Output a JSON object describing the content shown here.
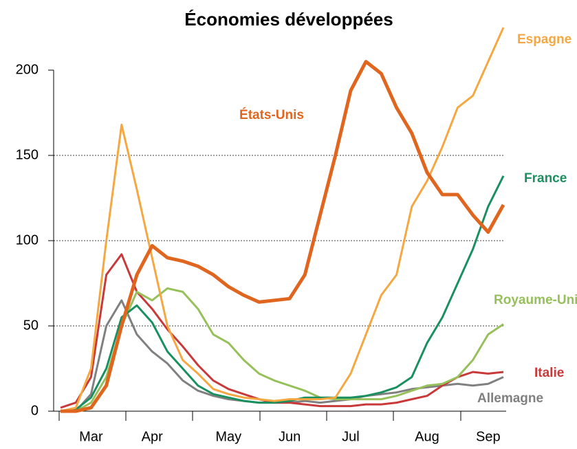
{
  "chart_data": {
    "type": "line",
    "title": "Économies développées",
    "categories": [
      null,
      null,
      "Mar",
      null,
      null,
      null,
      "Apr",
      null,
      null,
      null,
      null,
      "May",
      null,
      null,
      null,
      "Jun",
      null,
      null,
      null,
      "Jul",
      null,
      null,
      null,
      null,
      "Aug",
      null,
      null,
      null,
      "Sep",
      null
    ],
    "ylim": [
      0,
      200
    ],
    "yticks": [
      0,
      50,
      100,
      150,
      200
    ],
    "grid": true,
    "series": [
      {
        "name": "États-Unis",
        "color": "#e0661f",
        "values": [
          0,
          0,
          2,
          15,
          50,
          80,
          97,
          90,
          88,
          85,
          80,
          73,
          68,
          64,
          65,
          66,
          80,
          115,
          150,
          188,
          205,
          198,
          178,
          163,
          140,
          127,
          127,
          115,
          105,
          121
        ]
      },
      {
        "name": "Espagne",
        "color": "#f5a742",
        "values": [
          0,
          2,
          25,
          100,
          168,
          130,
          90,
          50,
          30,
          22,
          13,
          10,
          8,
          7,
          6,
          7,
          7,
          7,
          8,
          22,
          45,
          68,
          80,
          120,
          135,
          155,
          178,
          185,
          205,
          225
        ]
      },
      {
        "name": "France",
        "color": "#1a9060",
        "values": [
          0,
          1,
          8,
          25,
          55,
          62,
          52,
          35,
          25,
          15,
          10,
          8,
          6,
          5,
          5,
          6,
          8,
          8,
          8,
          8,
          9,
          11,
          14,
          20,
          40,
          55,
          75,
          95,
          120,
          138
        ]
      },
      {
        "name": "Royaume-Uni",
        "color": "#96c05a",
        "values": [
          0,
          0,
          5,
          20,
          50,
          70,
          65,
          72,
          70,
          60,
          45,
          40,
          30,
          22,
          18,
          15,
          12,
          8,
          7,
          7,
          7,
          7,
          9,
          12,
          15,
          16,
          20,
          30,
          45,
          51
        ]
      },
      {
        "name": "Italie",
        "color": "#c8393a",
        "values": [
          2,
          5,
          20,
          80,
          92,
          70,
          60,
          48,
          38,
          27,
          18,
          13,
          10,
          7,
          5,
          5,
          4,
          3,
          3,
          3,
          4,
          4,
          5,
          7,
          9,
          15,
          20,
          23,
          22,
          23
        ]
      },
      {
        "name": "Allemagne",
        "color": "#808080",
        "values": [
          0,
          0,
          10,
          50,
          65,
          45,
          35,
          28,
          18,
          12,
          9,
          7,
          6,
          5,
          5,
          5,
          6,
          5,
          6,
          7,
          9,
          10,
          11,
          13,
          14,
          15,
          16,
          15,
          16,
          20
        ]
      }
    ]
  }
}
